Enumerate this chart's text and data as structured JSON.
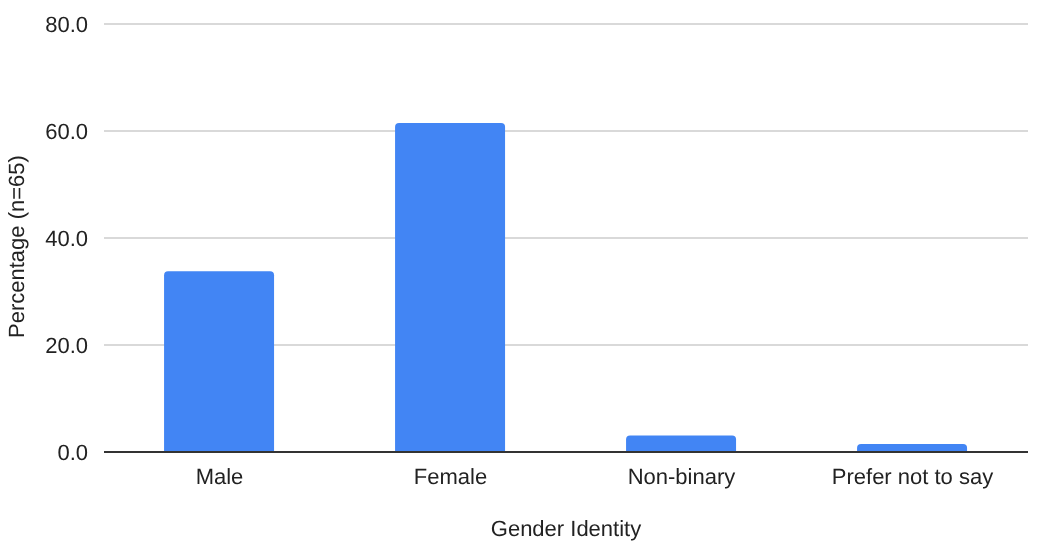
{
  "chart_data": {
    "type": "bar",
    "xlabel": "Gender Identity",
    "ylabel": "Percentage (n=65)",
    "categories": [
      "Male",
      "Female",
      "Non-binary",
      "Prefer not to say"
    ],
    "values": [
      33.8,
      61.5,
      3.1,
      1.5
    ],
    "color": "#4285f4",
    "ylim": [
      0,
      80
    ],
    "yticks": [
      {
        "value": 0,
        "label": "0.0"
      },
      {
        "value": 20,
        "label": "20.0"
      },
      {
        "value": 40,
        "label": "40.0"
      },
      {
        "value": 60,
        "label": "60.0"
      },
      {
        "value": 80,
        "label": "80.0"
      }
    ],
    "grid": "y",
    "legend": false
  }
}
